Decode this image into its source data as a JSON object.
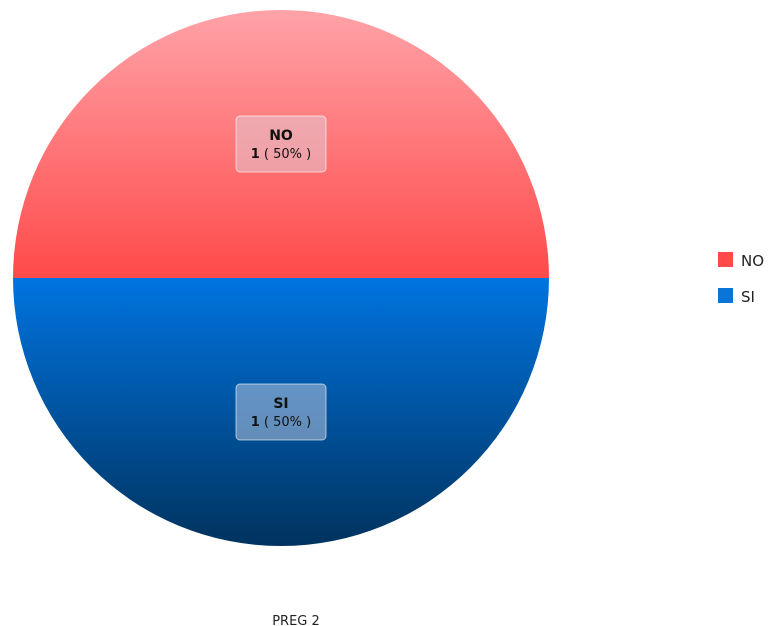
{
  "chart_data": {
    "type": "pie",
    "title": "",
    "caption": "PREG 2",
    "slices": [
      {
        "label": "NO",
        "value": 1,
        "percent_text": "( 50% )",
        "color": "#ff4a4a",
        "color_light": "#ffa3a8"
      },
      {
        "label": "SI",
        "value": 1,
        "percent_text": "( 50% )",
        "color": "#0074e0",
        "color_dark": "#00335f"
      }
    ],
    "legend": {
      "position": "right",
      "items": [
        {
          "label": "NO",
          "color": "#ff4a4a"
        },
        {
          "label": "SI",
          "color": "#0a74d8"
        }
      ]
    }
  }
}
